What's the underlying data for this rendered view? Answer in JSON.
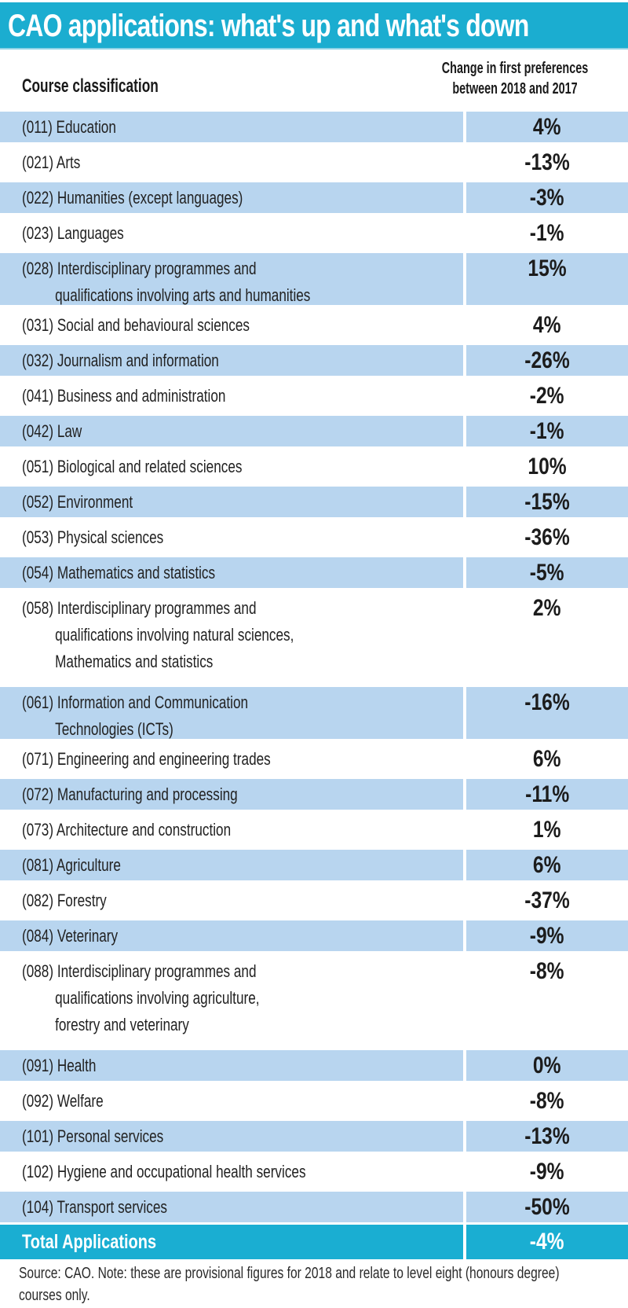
{
  "title": "CAO applications: what's up and what's down",
  "colors": {
    "title_bar": "#1badd0",
    "shaded_row": "#b8d5ef",
    "total_row": "#1aaed2"
  },
  "headers": {
    "course": "Course classification",
    "change_line1": "Change in first preferences",
    "change_line2": "between 2018 and 2017"
  },
  "rows": [
    {
      "code": "(011)",
      "lines": [
        "(011) Education"
      ],
      "value": "4%"
    },
    {
      "code": "(021)",
      "lines": [
        "(021) Arts"
      ],
      "value": "-13%"
    },
    {
      "code": "(022)",
      "lines": [
        "(022) Humanities (except languages)"
      ],
      "value": "-3%"
    },
    {
      "code": "(023)",
      "lines": [
        "(023) Languages"
      ],
      "value": "-1%"
    },
    {
      "code": "(028)",
      "lines": [
        "(028) Interdisciplinary programmes and",
        "qualifications involving arts and humanities"
      ],
      "value": "15%"
    },
    {
      "code": "(031)",
      "lines": [
        "(031) Social and behavioural sciences"
      ],
      "value": "4%"
    },
    {
      "code": "(032)",
      "lines": [
        "(032) Journalism and information"
      ],
      "value": "-26%"
    },
    {
      "code": "(041)",
      "lines": [
        "(041) Business and administration"
      ],
      "value": "-2%"
    },
    {
      "code": "(042)",
      "lines": [
        "(042) Law"
      ],
      "value": "-1%"
    },
    {
      "code": "(051)",
      "lines": [
        "(051) Biological and related sciences"
      ],
      "value": "10%"
    },
    {
      "code": "(052)",
      "lines": [
        "(052) Environment"
      ],
      "value": "-15%"
    },
    {
      "code": "(053)",
      "lines": [
        "(053) Physical sciences"
      ],
      "value": "-36%"
    },
    {
      "code": "(054)",
      "lines": [
        "(054) Mathematics and statistics"
      ],
      "value": "-5%"
    },
    {
      "code": "(058)",
      "lines": [
        "(058) Interdisciplinary programmes and",
        "qualifications involving natural sciences,",
        "Mathematics and statistics"
      ],
      "value": "2%"
    },
    {
      "code": "(061)",
      "lines": [
        "(061) Information and Communication",
        "Technologies (ICTs)"
      ],
      "value": "-16%"
    },
    {
      "code": "(071)",
      "lines": [
        "(071) Engineering and engineering trades"
      ],
      "value": "6%"
    },
    {
      "code": "(072)",
      "lines": [
        "(072) Manufacturing and processing"
      ],
      "value": "-11%"
    },
    {
      "code": "(073)",
      "lines": [
        "(073) Architecture and construction"
      ],
      "value": "1%"
    },
    {
      "code": "(081)",
      "lines": [
        "(081) Agriculture"
      ],
      "value": "6%"
    },
    {
      "code": "(082)",
      "lines": [
        "(082) Forestry"
      ],
      "value": "-37%"
    },
    {
      "code": "(084)",
      "lines": [
        "(084) Veterinary"
      ],
      "value": "-9%"
    },
    {
      "code": "(088)",
      "lines": [
        "(088) Interdisciplinary programmes and",
        "qualifications involving agriculture,",
        "forestry and veterinary"
      ],
      "value": "-8%"
    },
    {
      "code": "(091)",
      "lines": [
        "(091) Health"
      ],
      "value": "0%"
    },
    {
      "code": "(092)",
      "lines": [
        "(092) Welfare"
      ],
      "value": "-8%"
    },
    {
      "code": "(101)",
      "lines": [
        "(101) Personal services"
      ],
      "value": "-13%"
    },
    {
      "code": "(102)",
      "lines": [
        "(102) Hygiene and occupational health services"
      ],
      "value": "-9%"
    },
    {
      "code": "(104)",
      "lines": [
        "(104) Transport services"
      ],
      "value": "-50%"
    }
  ],
  "total": {
    "label": "Total Applications",
    "value": "-4%"
  },
  "source": "Source: CAO. Note: these are provisional figures for 2018 and relate to level eight (honours degree) courses only.",
  "chart_data": {
    "type": "table",
    "title": "CAO applications: what's up and what's down",
    "columns": [
      "Course classification",
      "Change in first preferences between 2018 and 2017"
    ],
    "categories": [
      "(011) Education",
      "(021) Arts",
      "(022) Humanities (except languages)",
      "(023) Languages",
      "(028) Interdisciplinary programmes and qualifications involving arts and humanities",
      "(031) Social and behavioural sciences",
      "(032) Journalism and information",
      "(041) Business and administration",
      "(042) Law",
      "(051) Biological and related sciences",
      "(052) Environment",
      "(053) Physical sciences",
      "(054) Mathematics and statistics",
      "(058) Interdisciplinary programmes and qualifications involving natural sciences, Mathematics and statistics",
      "(061) Information and Communication Technologies (ICTs)",
      "(071) Engineering and engineering trades",
      "(072) Manufacturing and processing",
      "(073) Architecture and construction",
      "(081) Agriculture",
      "(082) Forestry",
      "(084) Veterinary",
      "(088) Interdisciplinary programmes and qualifications involving agriculture, forestry and veterinary",
      "(091) Health",
      "(092) Welfare",
      "(101) Personal services",
      "(102) Hygiene and occupational health services",
      "(104) Transport services"
    ],
    "values": [
      4,
      -13,
      -3,
      -1,
      15,
      4,
      -26,
      -2,
      -1,
      10,
      -15,
      -36,
      -5,
      2,
      -16,
      6,
      -11,
      1,
      6,
      -37,
      -9,
      -8,
      0,
      -8,
      -13,
      -9,
      -50
    ],
    "unit": "%",
    "total": {
      "label": "Total Applications",
      "value": -4
    },
    "note": "Source: CAO. Note: these are provisional figures for 2018 and relate to level eight (honours degree) courses only."
  }
}
